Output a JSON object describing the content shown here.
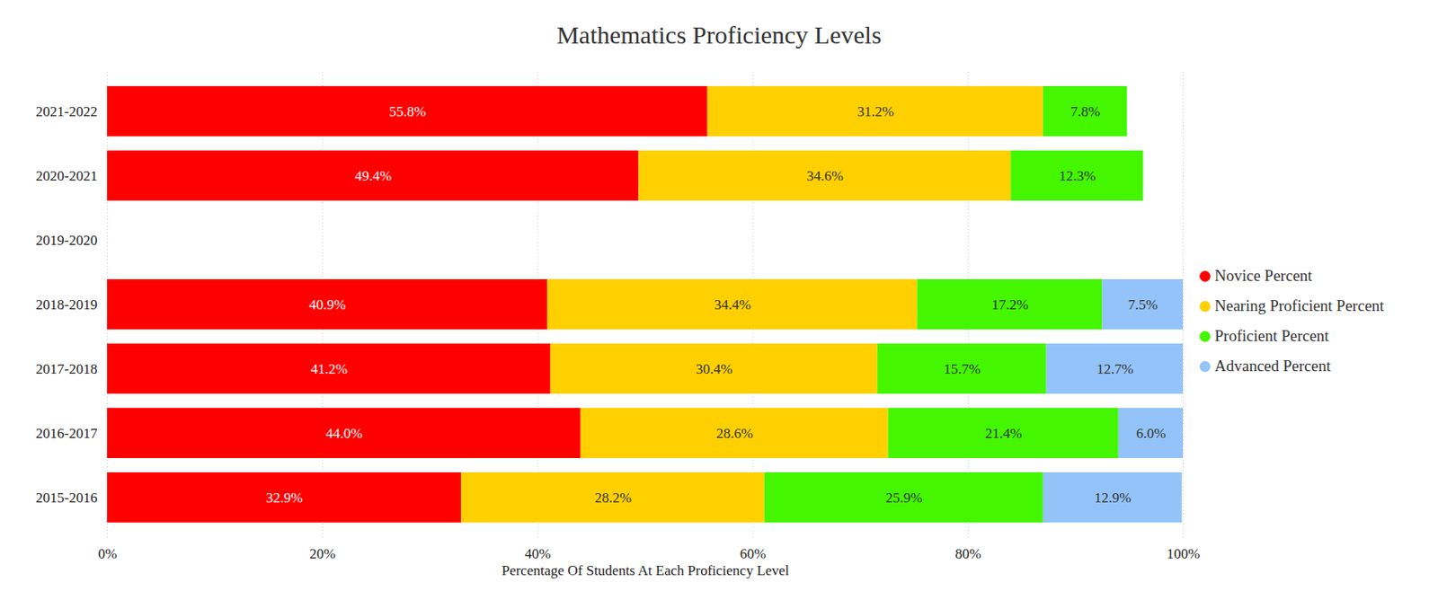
{
  "chart_data": {
    "type": "bar",
    "title": "Mathematics Proficiency Levels",
    "x_label": "Percentage Of Students At Each Proficiency Level",
    "orientation": "horizontal",
    "stacked": true,
    "data_labels": true,
    "grid": true,
    "legend": "right",
    "categories": [
      "2021-2022",
      "2020-2021",
      "2019-2020",
      "2018-2019",
      "2017-2018",
      "2016-2017",
      "2015-2016"
    ],
    "series": [
      {
        "name": "Novice Percent",
        "color": "#ff0000",
        "values": [
          55.8,
          49.4,
          null,
          40.9,
          41.2,
          44.0,
          32.9
        ],
        "value_labels": [
          "55.8%",
          "49.4%",
          null,
          "40.9%",
          "41.2%",
          "44.0%",
          "32.9%"
        ]
      },
      {
        "name": "Nearing Proficient Percent",
        "color": "#ffd000",
        "values": [
          31.2,
          34.6,
          null,
          34.4,
          30.4,
          28.6,
          28.2
        ],
        "value_labels": [
          "31.2%",
          "34.6%",
          null,
          "34.4%",
          "30.4%",
          "28.6%",
          "28.2%"
        ]
      },
      {
        "name": "Proficient Percent",
        "color": "#44f600",
        "values": [
          7.8,
          12.3,
          null,
          17.2,
          15.7,
          21.4,
          25.9
        ],
        "value_labels": [
          "7.8%",
          "12.3%",
          null,
          "17.2%",
          "15.7%",
          "21.4%",
          "25.9%"
        ]
      },
      {
        "name": "Advanced Percent",
        "color": "#93c3f8",
        "values": [
          null,
          null,
          null,
          7.5,
          12.7,
          6.0,
          12.9
        ],
        "value_labels": [
          null,
          null,
          null,
          "7.5%",
          "12.7%",
          "6.0%",
          "12.9%"
        ]
      }
    ],
    "xlim": [
      0,
      100
    ],
    "xticks": [
      {
        "value": 0,
        "label": "0%"
      },
      {
        "value": 20,
        "label": "20%"
      },
      {
        "value": 40,
        "label": "40%"
      },
      {
        "value": 60,
        "label": "60%"
      },
      {
        "value": 80,
        "label": "80%"
      },
      {
        "value": 100,
        "label": "100%"
      }
    ]
  }
}
